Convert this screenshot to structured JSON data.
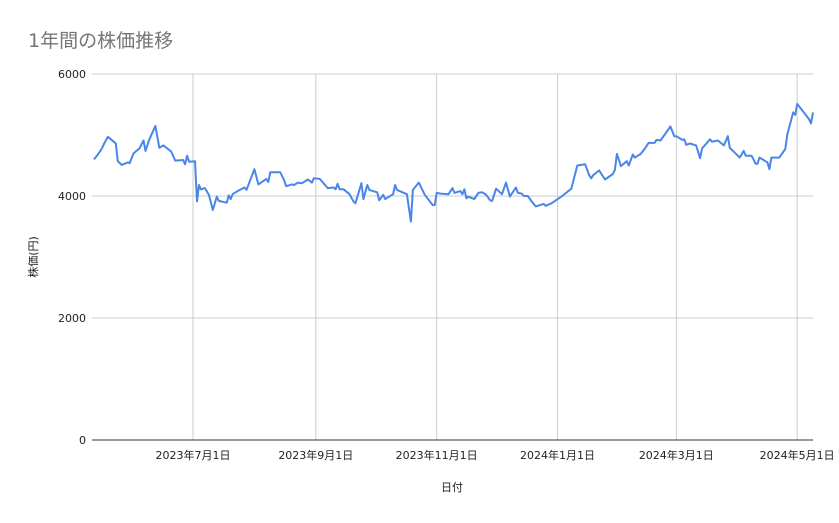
{
  "chart_data": {
    "type": "line",
    "title": "1年間の株価推移",
    "xlabel": "日付",
    "ylabel": "株価(円)",
    "ylim": [
      0,
      6000
    ],
    "xlim": [
      "2023-05-11",
      "2024-05-09"
    ],
    "yticks": [
      {
        "value": 0,
        "label": "0"
      },
      {
        "value": 2000,
        "label": "2000"
      },
      {
        "value": 4000,
        "label": "4000"
      },
      {
        "value": 6000,
        "label": "6000"
      }
    ],
    "xticks": [
      {
        "date": "2023-07-01",
        "label": "2023年7月1日"
      },
      {
        "date": "2023-09-01",
        "label": "2023年9月1日"
      },
      {
        "date": "2023-11-01",
        "label": "2023年11月1日"
      },
      {
        "date": "2024-01-01",
        "label": "2024年1月1日"
      },
      {
        "date": "2024-03-01",
        "label": "2024年3月1日"
      },
      {
        "date": "2024-05-01",
        "label": "2024年5月1日"
      }
    ],
    "grid": true,
    "legend": "none",
    "colors": {
      "line": "#4a86e8",
      "grid": "#cccccc",
      "axis": "#333333",
      "title": "#757575"
    },
    "series": [
      {
        "points": [
          [
            "2023-05-12",
            4600
          ],
          [
            "2023-05-14",
            4680
          ],
          [
            "2023-05-16",
            4780
          ],
          [
            "2023-05-17",
            4850
          ],
          [
            "2023-05-19",
            4970
          ],
          [
            "2023-05-22",
            4890
          ],
          [
            "2023-05-23",
            4860
          ],
          [
            "2023-05-24",
            4570
          ],
          [
            "2023-05-26",
            4510
          ],
          [
            "2023-05-29",
            4550
          ],
          [
            "2023-05-30",
            4540
          ],
          [
            "2023-06-01",
            4700
          ],
          [
            "2023-06-04",
            4780
          ],
          [
            "2023-06-06",
            4910
          ],
          [
            "2023-06-07",
            4740
          ],
          [
            "2023-06-09",
            4930
          ],
          [
            "2023-06-12",
            5150
          ],
          [
            "2023-06-14",
            4790
          ],
          [
            "2023-06-16",
            4830
          ],
          [
            "2023-06-20",
            4730
          ],
          [
            "2023-06-22",
            4580
          ],
          [
            "2023-06-26",
            4590
          ],
          [
            "2023-06-27",
            4520
          ],
          [
            "2023-06-28",
            4660
          ],
          [
            "2023-06-29",
            4560
          ],
          [
            "2023-07-02",
            4570
          ],
          [
            "2023-07-03",
            3910
          ],
          [
            "2023-07-04",
            4180
          ],
          [
            "2023-07-05",
            4110
          ],
          [
            "2023-07-07",
            4130
          ],
          [
            "2023-07-09",
            4020
          ],
          [
            "2023-07-11",
            3770
          ],
          [
            "2023-07-13",
            3990
          ],
          [
            "2023-07-14",
            3920
          ],
          [
            "2023-07-18",
            3890
          ],
          [
            "2023-07-19",
            4010
          ],
          [
            "2023-07-20",
            3950
          ],
          [
            "2023-07-21",
            4030
          ],
          [
            "2023-07-24",
            4090
          ],
          [
            "2023-07-27",
            4140
          ],
          [
            "2023-07-28",
            4100
          ],
          [
            "2023-08-01",
            4440
          ],
          [
            "2023-08-03",
            4190
          ],
          [
            "2023-08-07",
            4280
          ],
          [
            "2023-08-08",
            4230
          ],
          [
            "2023-08-09",
            4390
          ],
          [
            "2023-08-14",
            4390
          ],
          [
            "2023-08-16",
            4260
          ],
          [
            "2023-08-17",
            4160
          ],
          [
            "2023-08-20",
            4190
          ],
          [
            "2023-08-21",
            4180
          ],
          [
            "2023-08-23",
            4220
          ],
          [
            "2023-08-25",
            4210
          ],
          [
            "2023-08-28",
            4270
          ],
          [
            "2023-08-30",
            4220
          ],
          [
            "2023-08-31",
            4290
          ],
          [
            "2023-09-03",
            4280
          ],
          [
            "2023-09-07",
            4130
          ],
          [
            "2023-09-10",
            4140
          ],
          [
            "2023-09-11",
            4110
          ],
          [
            "2023-09-12",
            4200
          ],
          [
            "2023-09-13",
            4110
          ],
          [
            "2023-09-15",
            4110
          ],
          [
            "2023-09-18",
            4030
          ],
          [
            "2023-09-20",
            3910
          ],
          [
            "2023-09-21",
            3880
          ],
          [
            "2023-09-24",
            4210
          ],
          [
            "2023-09-25",
            3950
          ],
          [
            "2023-09-27",
            4180
          ],
          [
            "2023-09-28",
            4100
          ],
          [
            "2023-10-02",
            4060
          ],
          [
            "2023-10-03",
            3930
          ],
          [
            "2023-10-05",
            4020
          ],
          [
            "2023-10-06",
            3950
          ],
          [
            "2023-10-10",
            4030
          ],
          [
            "2023-10-11",
            4180
          ],
          [
            "2023-10-12",
            4100
          ],
          [
            "2023-10-17",
            4030
          ],
          [
            "2023-10-19",
            3580
          ],
          [
            "2023-10-20",
            4100
          ],
          [
            "2023-10-23",
            4220
          ],
          [
            "2023-10-26",
            4020
          ],
          [
            "2023-10-30",
            3850
          ],
          [
            "2023-10-31",
            3850
          ],
          [
            "2023-11-01",
            4050
          ],
          [
            "2023-11-03",
            4040
          ],
          [
            "2023-11-07",
            4030
          ],
          [
            "2023-11-09",
            4130
          ],
          [
            "2023-11-10",
            4050
          ],
          [
            "2023-11-13",
            4080
          ],
          [
            "2023-11-14",
            4030
          ],
          [
            "2023-11-15",
            4110
          ],
          [
            "2023-11-16",
            3960
          ],
          [
            "2023-11-17",
            3990
          ],
          [
            "2023-11-20",
            3950
          ],
          [
            "2023-11-22",
            4050
          ],
          [
            "2023-11-24",
            4060
          ],
          [
            "2023-11-26",
            4020
          ],
          [
            "2023-11-28",
            3930
          ],
          [
            "2023-11-29",
            3920
          ],
          [
            "2023-12-01",
            4120
          ],
          [
            "2023-12-04",
            4030
          ],
          [
            "2023-12-06",
            4220
          ],
          [
            "2023-12-08",
            3990
          ],
          [
            "2023-12-11",
            4140
          ],
          [
            "2023-12-12",
            4050
          ],
          [
            "2023-12-14",
            4040
          ],
          [
            "2023-12-15",
            4000
          ],
          [
            "2023-12-17",
            4000
          ],
          [
            "2023-12-19",
            3910
          ],
          [
            "2023-12-21",
            3830
          ],
          [
            "2023-12-25",
            3870
          ],
          [
            "2023-12-26",
            3840
          ],
          [
            "2023-12-29",
            3880
          ],
          [
            "2024-01-03",
            3990
          ],
          [
            "2024-01-08",
            4120
          ],
          [
            "2024-01-11",
            4500
          ],
          [
            "2024-01-15",
            4520
          ],
          [
            "2024-01-17",
            4340
          ],
          [
            "2024-01-18",
            4290
          ],
          [
            "2024-01-19",
            4340
          ],
          [
            "2024-01-22",
            4420
          ],
          [
            "2024-01-25",
            4270
          ],
          [
            "2024-01-29",
            4360
          ],
          [
            "2024-01-30",
            4430
          ],
          [
            "2024-01-31",
            4690
          ],
          [
            "2024-02-02",
            4490
          ],
          [
            "2024-02-05",
            4570
          ],
          [
            "2024-02-06",
            4500
          ],
          [
            "2024-02-08",
            4680
          ],
          [
            "2024-02-09",
            4630
          ],
          [
            "2024-02-12",
            4690
          ],
          [
            "2024-02-14",
            4770
          ],
          [
            "2024-02-16",
            4870
          ],
          [
            "2024-02-19",
            4870
          ],
          [
            "2024-02-20",
            4920
          ],
          [
            "2024-02-22",
            4910
          ],
          [
            "2024-02-27",
            5140
          ],
          [
            "2024-02-29",
            4980
          ],
          [
            "2024-03-01",
            4980
          ],
          [
            "2024-03-04",
            4920
          ],
          [
            "2024-03-05",
            4930
          ],
          [
            "2024-03-06",
            4840
          ],
          [
            "2024-03-08",
            4860
          ],
          [
            "2024-03-11",
            4830
          ],
          [
            "2024-03-13",
            4620
          ],
          [
            "2024-03-14",
            4780
          ],
          [
            "2024-03-18",
            4930
          ],
          [
            "2024-03-19",
            4890
          ],
          [
            "2024-03-22",
            4910
          ],
          [
            "2024-03-25",
            4830
          ],
          [
            "2024-03-27",
            4980
          ],
          [
            "2024-03-28",
            4790
          ],
          [
            "2024-04-02",
            4630
          ],
          [
            "2024-04-04",
            4740
          ],
          [
            "2024-04-05",
            4660
          ],
          [
            "2024-04-08",
            4660
          ],
          [
            "2024-04-10",
            4530
          ],
          [
            "2024-04-11",
            4530
          ],
          [
            "2024-04-12",
            4630
          ],
          [
            "2024-04-15",
            4570
          ],
          [
            "2024-04-16",
            4550
          ],
          [
            "2024-04-17",
            4440
          ],
          [
            "2024-04-18",
            4630
          ],
          [
            "2024-04-22",
            4630
          ],
          [
            "2024-04-25",
            4770
          ],
          [
            "2024-04-26",
            5010
          ],
          [
            "2024-04-29",
            5370
          ],
          [
            "2024-04-30",
            5330
          ],
          [
            "2024-05-01",
            5510
          ],
          [
            "2024-05-07",
            5260
          ],
          [
            "2024-05-08",
            5190
          ],
          [
            "2024-05-09",
            5370
          ]
        ]
      }
    ]
  }
}
